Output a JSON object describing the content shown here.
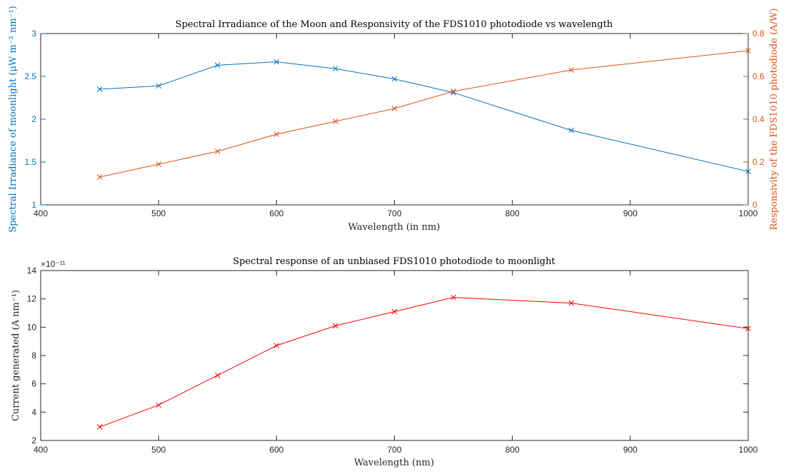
{
  "chart_data": [
    {
      "type": "line",
      "title": "Spectral Irradiance of the Moon and Responsivity of the FDS1010 photodiode vs wavelength",
      "xlabel": "Wavelength (in nm)",
      "ylabel_left": "Spectral Irradiance of moonlight (μW m⁻² nm⁻¹)",
      "ylabel_right": "Responsivity of the FDS1010 photodiode (A/W)",
      "xlim": [
        400,
        1000
      ],
      "ylim_left": [
        1,
        3
      ],
      "ylim_right": [
        0,
        0.8
      ],
      "xticks": [
        "400",
        "500",
        "600",
        "700",
        "800",
        "900",
        "1000"
      ],
      "yticks_left": [
        "1",
        "1.5",
        "2",
        "2.5",
        "3"
      ],
      "yticks_right": [
        "0",
        "0.2",
        "0.4",
        "0.6",
        "0.8"
      ],
      "grid": false,
      "series": [
        {
          "axis": "left",
          "color": "#0072bd",
          "marker": "x",
          "x": [
            450,
            500,
            550,
            600,
            650,
            700,
            750,
            850,
            1000
          ],
          "y": [
            2.35,
            2.39,
            2.63,
            2.67,
            2.59,
            2.47,
            2.31,
            1.87,
            1.39
          ]
        },
        {
          "axis": "right",
          "color": "#d95319",
          "marker": "x",
          "x": [
            450,
            500,
            550,
            600,
            650,
            700,
            750,
            850,
            1000
          ],
          "y": [
            0.13,
            0.19,
            0.25,
            0.33,
            0.39,
            0.45,
            0.53,
            0.63,
            0.72
          ]
        }
      ]
    },
    {
      "type": "line",
      "title": "Spectral response of an unbiased FDS1010 photodiode to moonlight",
      "xlabel": "Wavelength (nm)",
      "ylabel": "Current generated (A nm⁻¹)",
      "xlim": [
        400,
        1000
      ],
      "ylim": [
        2,
        14
      ],
      "y_multiplier": "×10⁻¹¹",
      "xticks": [
        "400",
        "500",
        "600",
        "700",
        "800",
        "900",
        "1000"
      ],
      "yticks": [
        "2",
        "4",
        "6",
        "8",
        "10",
        "12",
        "14"
      ],
      "grid": false,
      "series": [
        {
          "color": "#ff0000",
          "marker": "x",
          "x": [
            450,
            500,
            550,
            600,
            650,
            700,
            750,
            850,
            1000
          ],
          "y": [
            2.95,
            4.5,
            6.6,
            8.7,
            10.1,
            11.1,
            12.1,
            11.7,
            9.9
          ]
        }
      ]
    }
  ]
}
